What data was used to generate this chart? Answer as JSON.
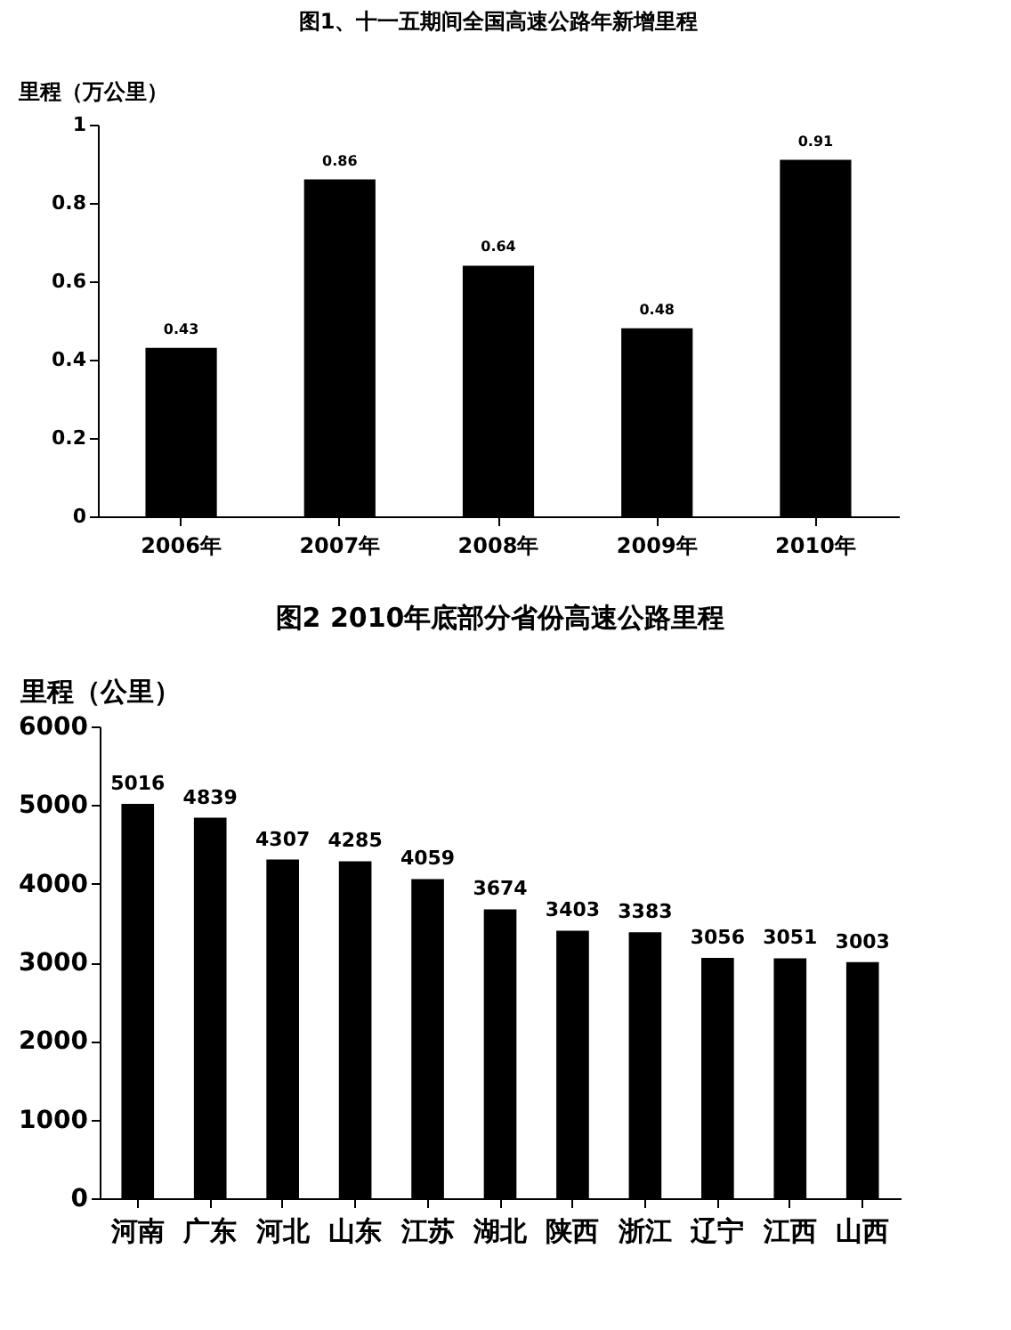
{
  "chart_data": [
    {
      "type": "bar",
      "title": "图1、十一五期间全国高速公路年新增里程",
      "ylabel": "里程（万公里）",
      "categories": [
        "2006年",
        "2007年",
        "2008年",
        "2009年",
        "2010年"
      ],
      "values": [
        0.43,
        0.86,
        0.64,
        0.48,
        0.91
      ],
      "color": "#000000",
      "ylim": [
        0,
        1
      ],
      "yticks": [
        0,
        0.2,
        0.4,
        0.6,
        0.8,
        1
      ],
      "data_labels": true,
      "grid": false
    },
    {
      "type": "bar",
      "title": "图2 2010年底部分省份高速公路里程",
      "ylabel": "里程（公里）",
      "categories": [
        "河南",
        "广东",
        "河北",
        "山东",
        "江苏",
        "湖北",
        "陕西",
        "浙江",
        "辽宁",
        "江西",
        "山西"
      ],
      "values": [
        5016,
        4839,
        4307,
        4285,
        4059,
        3674,
        3403,
        3383,
        3056,
        3051,
        3003
      ],
      "color": "#000000",
      "ylim": [
        0,
        6000
      ],
      "yticks": [
        0,
        1000,
        2000,
        3000,
        4000,
        5000,
        6000
      ],
      "data_labels": true,
      "grid": false
    }
  ]
}
